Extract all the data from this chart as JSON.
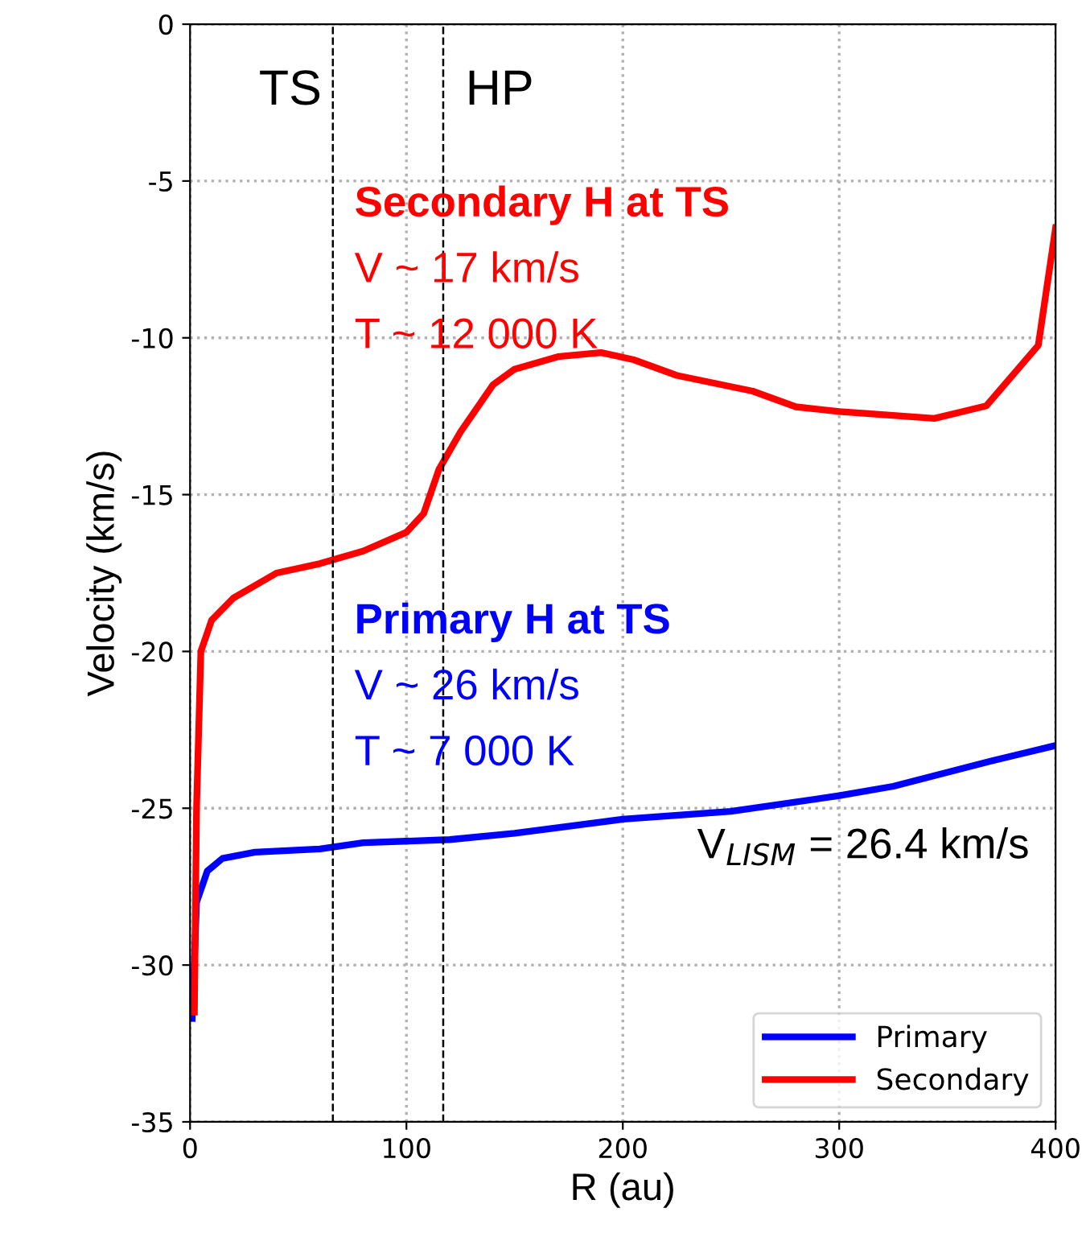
{
  "chart_data": {
    "type": "line",
    "xlabel": "R (au)",
    "ylabel": "Velocity (km/s)",
    "xlim": [
      0,
      400
    ],
    "xticks": [
      0,
      100,
      200,
      300,
      400
    ],
    "ylim": [
      -35,
      0
    ],
    "yticks": [
      -35,
      -30,
      -25,
      -20,
      -15,
      -10,
      -5,
      0
    ],
    "grid": true,
    "legend": "bottom right",
    "line_style": "solid",
    "marker": "none",
    "series": [
      {
        "name": "Primary",
        "color": "#0000ff",
        "x": [
          1,
          3,
          8,
          15,
          30,
          60,
          80,
          120,
          150,
          200,
          250,
          300,
          325,
          370,
          400
        ],
        "values": [
          -31.7,
          -28,
          -27,
          -26.6,
          -26.4,
          -26.3,
          -26.1,
          -26,
          -25.8,
          -25.35,
          -25.1,
          -24.6,
          -24.3,
          -23.5,
          -23.0
        ]
      },
      {
        "name": "Secondary",
        "color": "#ff0000",
        "x": [
          2,
          3,
          5,
          10,
          20,
          40,
          60,
          70,
          80,
          100,
          108,
          115,
          125,
          140,
          150,
          170,
          190,
          205,
          225,
          260,
          280,
          300,
          344,
          368,
          392,
          400
        ],
        "values": [
          -31.5,
          -25,
          -20,
          -19,
          -18.3,
          -17.5,
          -17.2,
          -17,
          -16.8,
          -16.2,
          -15.6,
          -14.2,
          -13,
          -11.5,
          -11,
          -10.6,
          -10.47,
          -10.7,
          -11.2,
          -11.7,
          -12.2,
          -12.35,
          -12.57,
          -12.17,
          -10.24,
          -6.49
        ]
      }
    ],
    "ref_lines": [
      {
        "axis": "x",
        "value": 66,
        "label": "TS",
        "color": "#000000",
        "line_style": "dashed"
      },
      {
        "axis": "x",
        "value": 117,
        "label": "HP",
        "color": "#000000",
        "line_style": "dashed"
      }
    ],
    "annotations": [
      "Secondary H at TS",
      "V ~ 17 km/s",
      "T ~ 12 000 K",
      "Primary H at TS",
      "V ~ 26 km/s",
      "T ~ 7 000 K",
      "V$_{LISM}$ = 26.4 km/s"
    ]
  }
}
